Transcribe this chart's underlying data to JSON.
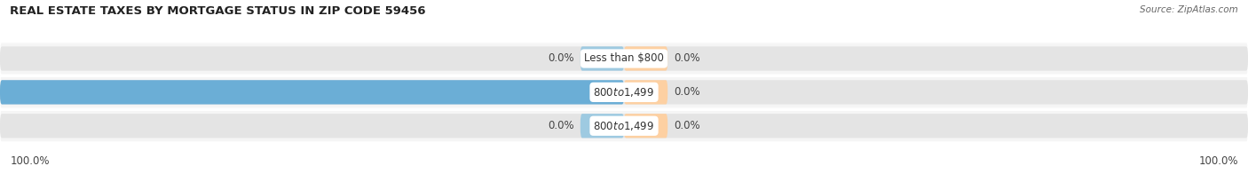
{
  "title": "REAL ESTATE TAXES BY MORTGAGE STATUS IN ZIP CODE 59456",
  "source": "Source: ZipAtlas.com",
  "rows": [
    {
      "label": "Less than $800",
      "without_mortgage": 0.0,
      "with_mortgage": 0.0
    },
    {
      "label": "$800 to $1,499",
      "without_mortgage": 100.0,
      "with_mortgage": 0.0
    },
    {
      "label": "$800 to $1,499",
      "without_mortgage": 0.0,
      "with_mortgage": 0.0
    }
  ],
  "color_without": "#6BAED6",
  "color_with": "#FDAE6B",
  "color_without_light": "#9ECAE1",
  "color_with_light": "#FDD0A2",
  "bar_bg_color": "#E4E4E4",
  "bar_height": 0.72,
  "row_bg_colors": [
    "#F2F2F2",
    "#F2F2F2",
    "#F2F2F2"
  ],
  "fig_bg_color": "#FFFFFF",
  "title_fontsize": 9.5,
  "label_fontsize": 8.5,
  "bar_label_fontsize": 8.5,
  "legend_fontsize": 8.5,
  "max_val": 100,
  "left_axis_label": "100.0%",
  "right_axis_label": "100.0%",
  "stub_size": 7
}
